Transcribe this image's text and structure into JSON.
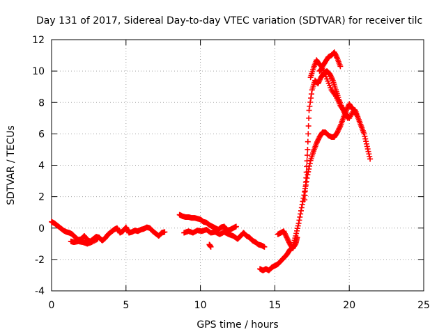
{
  "chart_data": {
    "type": "scatter",
    "title": "Day 131 of 2017, Sidereal Day-to-day VTEC variation (SDTVAR) for receiver tilc",
    "xlabel": "GPS time / hours",
    "ylabel": "SDTVAR / TECUs",
    "xlim": [
      0,
      25
    ],
    "ylim": [
      -4,
      12
    ],
    "xticks": [
      0,
      5,
      10,
      15,
      20,
      25
    ],
    "yticks": [
      -4,
      -2,
      0,
      2,
      4,
      6,
      8,
      10,
      12
    ],
    "grid": true,
    "marker": "+",
    "color": "#ff0000",
    "series": [
      {
        "name": "SDTVAR",
        "segments": [
          [
            [
              0.0,
              0.4
            ],
            [
              0.2,
              0.3
            ],
            [
              0.4,
              0.15
            ],
            [
              0.6,
              0.0
            ],
            [
              0.8,
              -0.15
            ],
            [
              1.0,
              -0.25
            ],
            [
              1.2,
              -0.3
            ],
            [
              1.4,
              -0.4
            ],
            [
              1.6,
              -0.6
            ],
            [
              1.8,
              -0.75
            ],
            [
              2.0,
              -0.7
            ],
            [
              2.2,
              -0.5
            ],
            [
              2.4,
              -0.75
            ],
            [
              2.6,
              -0.85
            ],
            [
              2.8,
              -0.7
            ],
            [
              3.0,
              -0.55
            ],
            [
              3.2,
              -0.6
            ],
            [
              3.4,
              -0.8
            ],
            [
              3.6,
              -0.65
            ],
            [
              3.8,
              -0.4
            ],
            [
              4.0,
              -0.25
            ],
            [
              4.2,
              -0.1
            ],
            [
              4.4,
              0.0
            ],
            [
              4.6,
              -0.3
            ],
            [
              4.8,
              -0.2
            ],
            [
              5.0,
              0.05
            ],
            [
              5.2,
              -0.3
            ],
            [
              5.4,
              -0.25
            ],
            [
              5.6,
              -0.15
            ],
            [
              5.8,
              -0.2
            ],
            [
              6.0,
              -0.1
            ],
            [
              6.2,
              -0.05
            ],
            [
              6.4,
              0.05
            ],
            [
              6.6,
              0.0
            ],
            [
              6.8,
              -0.2
            ],
            [
              7.0,
              -0.35
            ],
            [
              7.2,
              -0.5
            ],
            [
              7.4,
              -0.3
            ],
            [
              7.6,
              -0.25
            ]
          ],
          [
            [
              1.3,
              -0.85
            ],
            [
              1.5,
              -0.9
            ],
            [
              1.8,
              -0.85
            ],
            [
              2.1,
              -0.9
            ],
            [
              2.4,
              -1.0
            ],
            [
              2.7,
              -0.9
            ],
            [
              3.1,
              -0.7
            ]
          ],
          [
            [
              8.6,
              0.85
            ],
            [
              8.8,
              0.75
            ],
            [
              9.0,
              0.7
            ],
            [
              9.2,
              0.7
            ],
            [
              9.4,
              0.65
            ],
            [
              9.6,
              0.65
            ],
            [
              9.8,
              0.6
            ],
            [
              10.0,
              0.55
            ],
            [
              10.2,
              0.4
            ],
            [
              10.4,
              0.35
            ],
            [
              10.6,
              0.2
            ],
            [
              10.8,
              0.1
            ],
            [
              11.0,
              0.0
            ],
            [
              11.2,
              -0.1
            ],
            [
              11.4,
              0.05
            ],
            [
              11.6,
              0.1
            ],
            [
              11.8,
              -0.15
            ],
            [
              12.0,
              -0.1
            ],
            [
              12.2,
              0.0
            ],
            [
              12.4,
              0.1
            ]
          ],
          [
            [
              8.9,
              -0.3
            ],
            [
              9.2,
              -0.2
            ],
            [
              9.5,
              -0.3
            ],
            [
              9.8,
              -0.15
            ],
            [
              10.1,
              -0.2
            ],
            [
              10.4,
              -0.1
            ],
            [
              10.7,
              -0.3
            ],
            [
              11.0,
              -0.25
            ],
            [
              11.3,
              -0.4
            ],
            [
              11.6,
              -0.25
            ],
            [
              11.9,
              -0.4
            ],
            [
              12.2,
              -0.5
            ],
            [
              12.5,
              -0.7
            ],
            [
              12.7,
              -0.5
            ],
            [
              12.9,
              -0.3
            ],
            [
              13.1,
              -0.5
            ],
            [
              13.3,
              -0.6
            ],
            [
              13.5,
              -0.8
            ],
            [
              13.7,
              -0.9
            ],
            [
              13.9,
              -1.05
            ],
            [
              14.1,
              -1.1
            ],
            [
              14.3,
              -1.2
            ]
          ],
          [
            [
              10.6,
              -1.05
            ],
            [
              10.7,
              -1.2
            ]
          ],
          [
            [
              14.0,
              -2.6
            ],
            [
              14.2,
              -2.7
            ],
            [
              14.4,
              -2.6
            ],
            [
              14.6,
              -2.7
            ],
            [
              14.8,
              -2.5
            ],
            [
              15.0,
              -2.4
            ],
            [
              15.2,
              -2.3
            ],
            [
              15.4,
              -2.1
            ],
            [
              15.6,
              -1.9
            ],
            [
              15.8,
              -1.7
            ],
            [
              16.0,
              -1.4
            ],
            [
              16.2,
              -1.2
            ],
            [
              16.4,
              -0.5
            ],
            [
              16.6,
              0.3
            ],
            [
              16.8,
              1.3
            ],
            [
              17.0,
              2.3
            ],
            [
              17.2,
              3.4
            ],
            [
              17.4,
              4.3
            ],
            [
              17.6,
              4.9
            ],
            [
              17.8,
              5.4
            ],
            [
              18.0,
              5.8
            ],
            [
              18.2,
              6.1
            ],
            [
              18.4,
              6.1
            ],
            [
              18.6,
              5.9
            ],
            [
              18.8,
              5.8
            ],
            [
              19.0,
              5.8
            ],
            [
              19.2,
              6.1
            ],
            [
              19.4,
              6.5
            ],
            [
              19.6,
              7.0
            ],
            [
              19.8,
              7.5
            ],
            [
              20.0,
              7.9
            ],
            [
              20.2,
              7.6
            ],
            [
              20.4,
              7.5
            ],
            [
              20.6,
              7.0
            ],
            [
              20.8,
              6.5
            ],
            [
              21.0,
              6.0
            ],
            [
              21.2,
              5.2
            ],
            [
              21.4,
              4.4
            ]
          ],
          [
            [
              15.2,
              -0.4
            ],
            [
              15.4,
              -0.3
            ],
            [
              15.6,
              -0.2
            ],
            [
              15.8,
              -0.6
            ],
            [
              16.0,
              -1.0
            ],
            [
              16.2,
              -1.3
            ],
            [
              16.4,
              -1.0
            ],
            [
              16.5,
              -0.6
            ]
          ],
          [
            [
              17.0,
              1.8
            ],
            [
              17.1,
              3.2
            ],
            [
              17.2,
              5.0
            ],
            [
              17.3,
              7.5
            ],
            [
              17.5,
              8.8
            ],
            [
              17.7,
              9.4
            ],
            [
              17.9,
              9.2
            ],
            [
              18.1,
              9.6
            ],
            [
              18.3,
              9.9
            ],
            [
              18.5,
              10.0
            ],
            [
              18.7,
              9.8
            ],
            [
              18.9,
              9.4
            ],
            [
              19.1,
              8.8
            ],
            [
              19.3,
              8.2
            ],
            [
              19.5,
              7.7
            ],
            [
              19.7,
              7.3
            ],
            [
              19.9,
              7.0
            ]
          ],
          [
            [
              17.4,
              9.6
            ],
            [
              17.6,
              10.2
            ],
            [
              17.8,
              10.7
            ],
            [
              18.0,
              10.4
            ],
            [
              18.2,
              10.3
            ],
            [
              18.4,
              10.6
            ],
            [
              18.6,
              10.9
            ],
            [
              18.8,
              11.0
            ],
            [
              19.0,
              11.2
            ],
            [
              19.2,
              10.8
            ],
            [
              19.4,
              10.3
            ]
          ],
          [
            [
              18.0,
              10.0
            ],
            [
              18.2,
              10.2
            ],
            [
              18.5,
              9.5
            ],
            [
              18.8,
              8.8
            ],
            [
              19.1,
              8.4
            ],
            [
              19.4,
              7.8
            ],
            [
              19.7,
              7.4
            ],
            [
              20.0,
              7.0
            ],
            [
              20.3,
              7.5
            ],
            [
              20.5,
              7.2
            ]
          ]
        ]
      }
    ]
  }
}
